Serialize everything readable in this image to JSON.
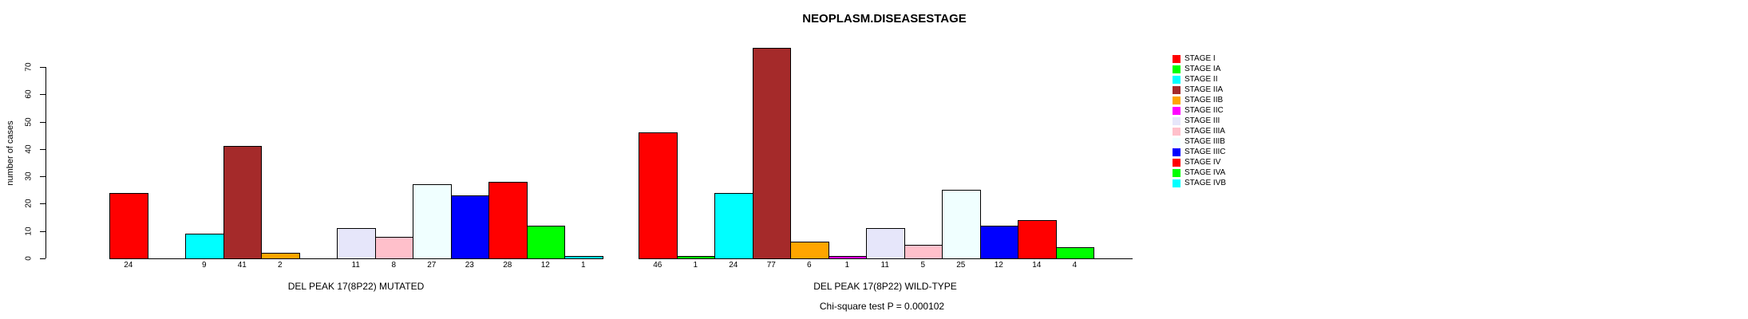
{
  "chart_data": {
    "type": "bar",
    "title": "NEOPLASM.DISEASESTAGE",
    "ylabel": "number of cases",
    "footer": "Chi-square test P = 0.000102",
    "yticks": [
      0,
      10,
      20,
      30,
      40,
      50,
      60,
      70
    ],
    "ylim": [
      0,
      77
    ],
    "grid": false,
    "legend_position": "right",
    "bar_border_color": "#000000",
    "stages": [
      {
        "label": "STAGE I",
        "color": "#FF0000"
      },
      {
        "label": "STAGE IA",
        "color": "#00FF00"
      },
      {
        "label": "STAGE II",
        "color": "#00FFFF"
      },
      {
        "label": "STAGE IIA",
        "color": "#A52A2A"
      },
      {
        "label": "STAGE IIB",
        "color": "#FFA500"
      },
      {
        "label": "STAGE IIC",
        "color": "#FF00FF"
      },
      {
        "label": "STAGE III",
        "color": "#E6E6FA"
      },
      {
        "label": "STAGE IIIA",
        "color": "#FFC0CB"
      },
      {
        "label": "STAGE IIIB",
        "color": "#F0FFFF"
      },
      {
        "label": "STAGE IIIC",
        "color": "#0000FF"
      },
      {
        "label": "STAGE IV",
        "color": "#FF0000"
      },
      {
        "label": "STAGE IVA",
        "color": "#00FF00"
      },
      {
        "label": "STAGE IVB",
        "color": "#00FFFF"
      }
    ],
    "groups": [
      {
        "label": "DEL PEAK 17(8P22) MUTATED",
        "values": [
          24,
          null,
          9,
          41,
          2,
          null,
          11,
          8,
          27,
          23,
          28,
          12,
          1
        ]
      },
      {
        "label": "DEL PEAK 17(8P22) WILD-TYPE",
        "values": [
          46,
          1,
          24,
          77,
          6,
          1,
          11,
          5,
          25,
          12,
          14,
          4,
          0
        ]
      }
    ]
  }
}
